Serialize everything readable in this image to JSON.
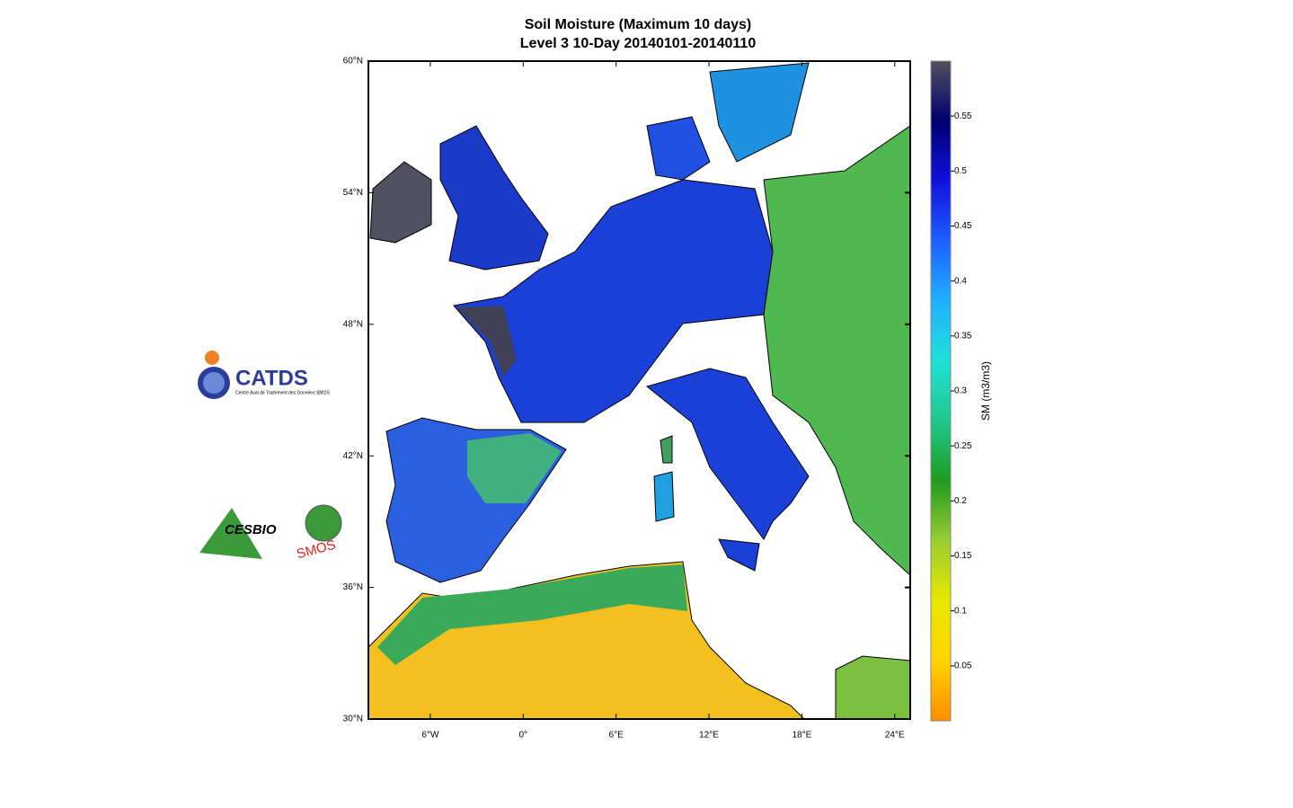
{
  "title": [
    "Soil Moisture (Maximum 10 days)",
    "Level 3 10-Day  20140101-20140110"
  ],
  "map": {
    "xlim": [
      -10,
      25
    ],
    "ylim": [
      30,
      60
    ],
    "xticks": [
      {
        "value": -6,
        "label": "6°W"
      },
      {
        "value": 0,
        "label": "0°"
      },
      {
        "value": 6,
        "label": "6°E"
      },
      {
        "value": 12,
        "label": "12°E"
      },
      {
        "value": 18,
        "label": "18°E"
      },
      {
        "value": 24,
        "label": "24°E"
      }
    ],
    "yticks": [
      {
        "value": 60,
        "label": "60°N"
      },
      {
        "value": 54,
        "label": "54°N"
      },
      {
        "value": 48,
        "label": "48°N"
      },
      {
        "value": 42,
        "label": "42°N"
      },
      {
        "value": 36,
        "label": "36°N"
      },
      {
        "value": 30,
        "label": "30°N"
      }
    ]
  },
  "colorbar": {
    "label": "SM (m3/m3)",
    "lim": [
      0,
      0.6
    ],
    "ticks": [
      0.05,
      0.1,
      0.15,
      0.2,
      0.25,
      0.3,
      0.35,
      0.4,
      0.45,
      0.5,
      0.55
    ],
    "colors": [
      "#ff8c00",
      "#ffd400",
      "#e8e800",
      "#9acd32",
      "#1e9b1e",
      "#20c88c",
      "#20e0d8",
      "#20b0ff",
      "#1e60ff",
      "#1010e0",
      "#000070",
      "#505060"
    ]
  },
  "logos": {
    "catds": "CATDS",
    "catds_sub": "Centre Aval de Traitement des Données SMOS",
    "cesbio": "CESBIO",
    "smos": "SMOS"
  }
}
